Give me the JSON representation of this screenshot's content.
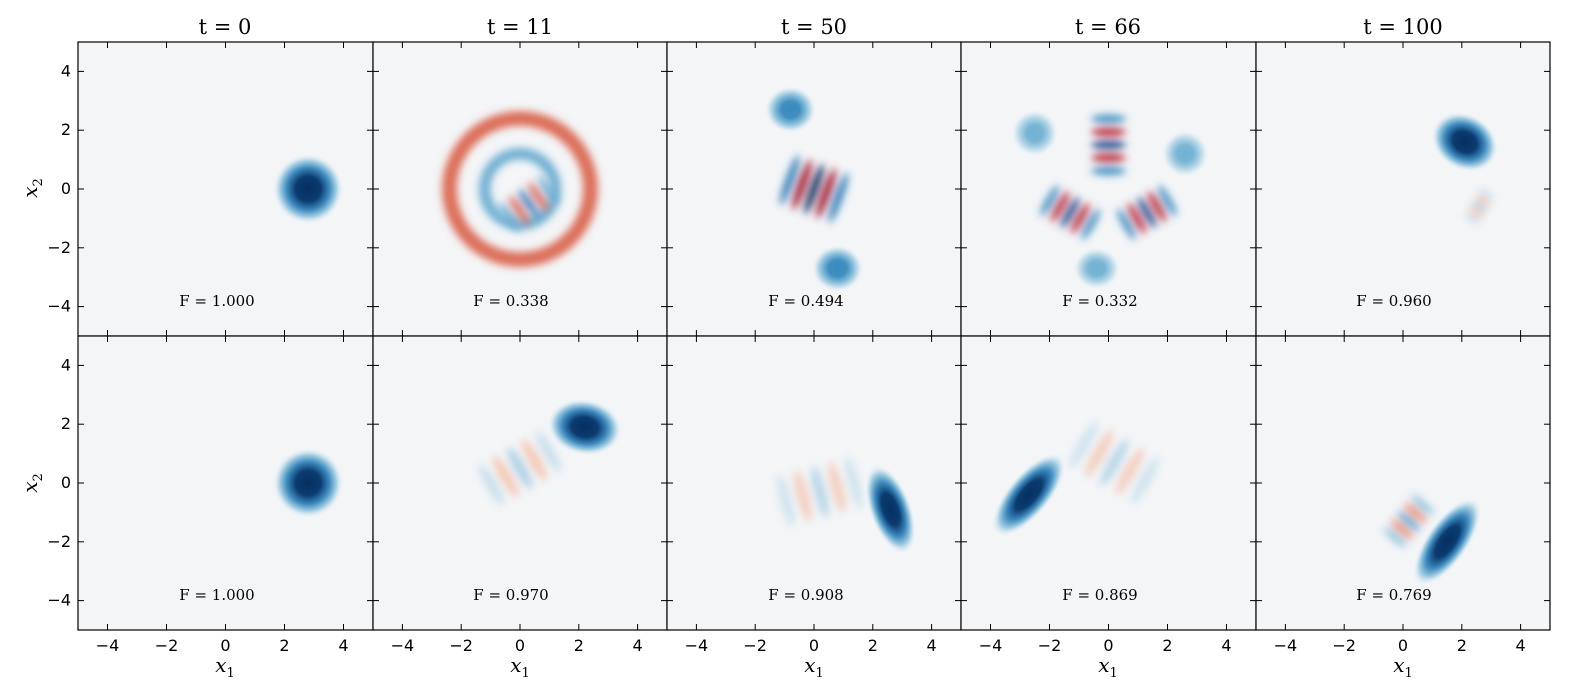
{
  "chart_data": {
    "type": "heatmap",
    "colormap": "RdBu_r",
    "background_color": "#f3f5f7",
    "xlabel": "x1",
    "ylabel": "x2",
    "xlim": [
      -5,
      5
    ],
    "ylim": [
      -5,
      5
    ],
    "x_ticks": [
      "−4",
      "−2",
      "0",
      "2",
      "4"
    ],
    "y_ticks": [
      "−4",
      "−2",
      "0",
      "2",
      "4"
    ],
    "grid": false,
    "columns": [
      {
        "title": "t = 0",
        "t": 0
      },
      {
        "title": "t = 11",
        "t": 11
      },
      {
        "title": "t = 50",
        "t": 50
      },
      {
        "title": "t = 66",
        "t": 66
      },
      {
        "title": "t = 100",
        "t": 100
      }
    ],
    "rows": [
      {
        "fidelity_labels": [
          "F = 1.000",
          "F = 0.338",
          "F = 0.494",
          "F = 0.332",
          "F = 0.960"
        ],
        "fidelity": [
          1.0,
          0.338,
          0.494,
          0.332,
          0.96
        ]
      },
      {
        "fidelity_labels": [
          "F = 1.000",
          "F = 0.970",
          "F = 0.908",
          "F = 0.869",
          "F = 0.769"
        ],
        "fidelity": [
          1.0,
          0.97,
          0.908,
          0.869,
          0.769
        ]
      }
    ],
    "panels": [
      [
        {
          "blobs": [
            {
              "x": 2.8,
              "y": 0.0,
              "sx": 0.75,
              "sy": 0.75,
              "angle": 0,
              "amp": 1.0
            }
          ],
          "fringes": []
        },
        {
          "blobs": [],
          "rings": [
            {
              "x": 0.0,
              "y": 0.0,
              "r": 2.4,
              "w": 0.5,
              "amp": -0.45
            },
            {
              "x": 0.0,
              "y": 0.0,
              "r": 1.2,
              "w": 0.4,
              "amp": 0.35
            }
          ],
          "fringes": [
            {
              "x": 0.3,
              "y": -0.5,
              "angle": 35,
              "len": 1.0,
              "wid": 0.6,
              "amp": 0.6,
              "freq": 2.5
            }
          ]
        },
        {
          "blobs": [
            {
              "x": -0.8,
              "y": 2.7,
              "sx": 0.55,
              "sy": 0.5,
              "angle": 0,
              "amp": 0.55
            },
            {
              "x": 0.8,
              "y": -2.7,
              "sx": 0.55,
              "sy": 0.5,
              "angle": 0,
              "amp": 0.55
            }
          ],
          "fringes": [
            {
              "x": 0.0,
              "y": 0.0,
              "angle": -20,
              "len": 1.1,
              "wid": 0.9,
              "amp": 1.0,
              "freq": 2.7
            }
          ]
        },
        {
          "blobs": [
            {
              "x": -2.5,
              "y": 1.9,
              "sx": 0.5,
              "sy": 0.5,
              "angle": 0,
              "amp": 0.35
            },
            {
              "x": 2.6,
              "y": 1.2,
              "sx": 0.5,
              "sy": 0.5,
              "angle": 0,
              "amp": 0.35
            },
            {
              "x": -0.4,
              "y": -2.7,
              "sx": 0.5,
              "sy": 0.45,
              "angle": 0,
              "amp": 0.35
            }
          ],
          "fringes": [
            {
              "x": 0.0,
              "y": 1.5,
              "angle": 90,
              "len": 1.1,
              "wid": 0.6,
              "amp": 0.85,
              "freq": 2.7
            },
            {
              "x": -1.3,
              "y": -0.8,
              "angle": -30,
              "len": 1.0,
              "wid": 0.6,
              "amp": 0.85,
              "freq": 2.7
            },
            {
              "x": 1.3,
              "y": -0.8,
              "angle": 30,
              "len": 1.0,
              "wid": 0.6,
              "amp": 0.85,
              "freq": 2.7
            }
          ]
        },
        {
          "blobs": [
            {
              "x": 2.1,
              "y": 1.6,
              "sx": 0.75,
              "sy": 0.6,
              "angle": -30,
              "amp": 1.0
            }
          ],
          "fringes": [
            {
              "x": 2.6,
              "y": -0.6,
              "angle": 60,
              "len": 0.6,
              "wid": 0.3,
              "amp": 0.25,
              "freq": 2.0
            }
          ]
        }
      ],
      [
        {
          "blobs": [
            {
              "x": 2.8,
              "y": 0.0,
              "sx": 0.75,
              "sy": 0.75,
              "angle": 0,
              "amp": 1.0
            }
          ],
          "fringes": []
        },
        {
          "blobs": [
            {
              "x": 2.2,
              "y": 1.9,
              "sx": 0.8,
              "sy": 0.6,
              "angle": -10,
              "amp": 1.0
            }
          ],
          "fringes": [
            {
              "x": 0.0,
              "y": 0.5,
              "angle": 30,
              "len": 1.4,
              "wid": 0.8,
              "amp": 0.18,
              "freq": 2.4
            }
          ]
        },
        {
          "blobs": [
            {
              "x": 2.6,
              "y": -0.9,
              "sx": 0.45,
              "sy": 1.0,
              "angle": 20,
              "amp": 1.0
            }
          ],
          "fringes": [
            {
              "x": 0.2,
              "y": -0.3,
              "angle": 15,
              "len": 1.5,
              "wid": 0.9,
              "amp": 0.15,
              "freq": 2.2
            }
          ]
        },
        {
          "blobs": [
            {
              "x": -2.7,
              "y": -0.4,
              "sx": 0.45,
              "sy": 1.1,
              "angle": -40,
              "amp": 1.0
            }
          ],
          "fringes": [
            {
              "x": 0.2,
              "y": 0.7,
              "angle": -30,
              "len": 1.5,
              "wid": 0.9,
              "amp": 0.15,
              "freq": 2.2
            }
          ]
        },
        {
          "blobs": [
            {
              "x": 1.5,
              "y": -2.0,
              "sx": 0.45,
              "sy": 1.1,
              "angle": -35,
              "amp": 1.0
            }
          ],
          "fringes": [
            {
              "x": 0.2,
              "y": -1.3,
              "angle": 50,
              "len": 0.9,
              "wid": 0.5,
              "amp": 0.45,
              "freq": 2.3
            }
          ]
        }
      ]
    ]
  }
}
